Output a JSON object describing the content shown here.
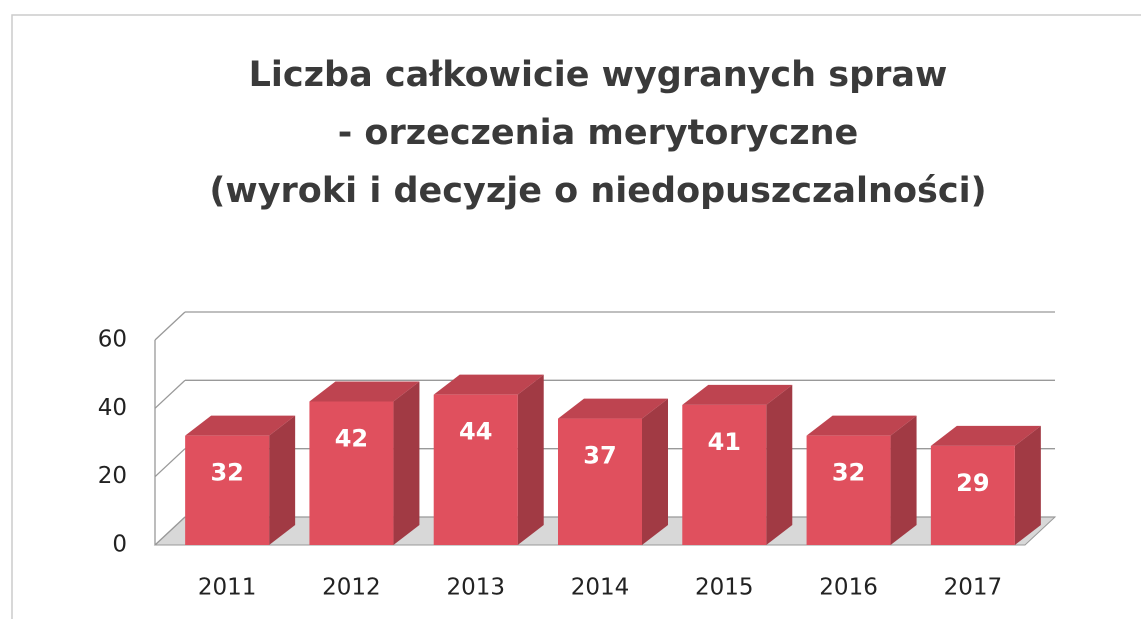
{
  "chart_data": {
    "type": "bar3d",
    "title": [
      "Liczba całkowicie wygranych spraw",
      "-  orzeczenia merytoryczne",
      "(wyroki i decyzje o niedopuszczalności)"
    ],
    "categories": [
      "2011",
      "2012",
      "2013",
      "2014",
      "2015",
      "2016",
      "2017"
    ],
    "values": [
      32,
      42,
      44,
      37,
      41,
      32,
      29
    ],
    "color": "#e0505e",
    "ylim": [
      0,
      60
    ],
    "yticks": [
      0,
      20,
      40,
      60
    ],
    "grid": true
  }
}
